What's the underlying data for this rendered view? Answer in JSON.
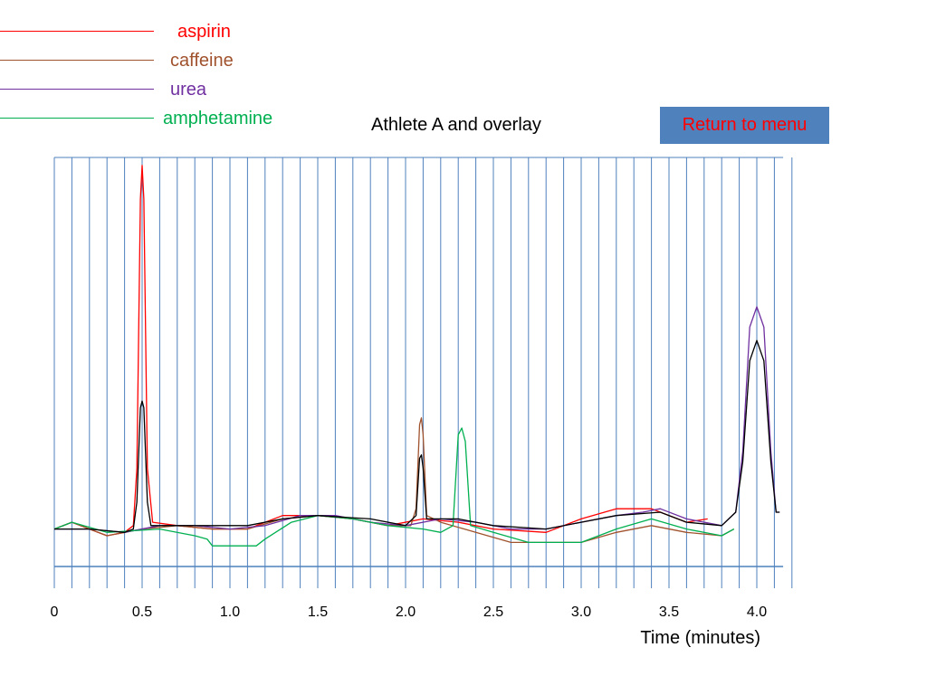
{
  "menu_button": {
    "label": "Return to menu"
  },
  "chart_data": {
    "type": "line",
    "title": "Athlete A and overlay",
    "xlabel": "Time (minutes)",
    "ylabel": "",
    "xlim": [
      0,
      4.15
    ],
    "x_ticks": [
      {
        "value": 0,
        "label": "0"
      },
      {
        "value": 0.5,
        "label": "0.5"
      },
      {
        "value": 1.0,
        "label": "1.0"
      },
      {
        "value": 1.5,
        "label": "1.5"
      },
      {
        "value": 2.0,
        "label": "2.0"
      },
      {
        "value": 2.5,
        "label": "2.5"
      },
      {
        "value": 3.0,
        "label": "3.0"
      },
      {
        "value": 3.5,
        "label": "3.5"
      },
      {
        "value": 4.0,
        "label": "4.0"
      }
    ],
    "grid": "vertical lines every 0.1 min",
    "legend_position": "top-left",
    "series": [
      {
        "name": "aspirin",
        "color": "#ff0000",
        "points": [
          [
            0,
            0.02
          ],
          [
            0.1,
            0.04
          ],
          [
            0.2,
            0.02
          ],
          [
            0.3,
            0.0
          ],
          [
            0.4,
            0.01
          ],
          [
            0.45,
            0.03
          ],
          [
            0.47,
            0.2
          ],
          [
            0.49,
            1.0
          ],
          [
            0.5,
            1.1
          ],
          [
            0.51,
            1.0
          ],
          [
            0.53,
            0.2
          ],
          [
            0.56,
            0.04
          ],
          [
            0.7,
            0.03
          ],
          [
            0.9,
            0.02
          ],
          [
            1.1,
            0.02
          ],
          [
            1.3,
            0.06
          ],
          [
            1.5,
            0.06
          ],
          [
            1.7,
            0.05
          ],
          [
            1.9,
            0.03
          ],
          [
            2.1,
            0.05
          ],
          [
            2.3,
            0.04
          ],
          [
            2.5,
            0.02
          ],
          [
            2.8,
            0.01
          ],
          [
            3.0,
            0.05
          ],
          [
            3.2,
            0.08
          ],
          [
            3.4,
            0.08
          ],
          [
            3.6,
            0.04
          ],
          [
            3.72,
            0.05
          ]
        ]
      },
      {
        "name": "caffeine",
        "color": "#a0522d",
        "points": [
          [
            0,
            0.02
          ],
          [
            0.1,
            0.04
          ],
          [
            0.3,
            0.0
          ],
          [
            0.5,
            0.02
          ],
          [
            0.7,
            0.03
          ],
          [
            0.9,
            0.02
          ],
          [
            1.1,
            0.02
          ],
          [
            1.3,
            0.05
          ],
          [
            1.5,
            0.06
          ],
          [
            1.7,
            0.05
          ],
          [
            1.9,
            0.03
          ],
          [
            2.03,
            0.03
          ],
          [
            2.06,
            0.08
          ],
          [
            2.08,
            0.33
          ],
          [
            2.09,
            0.35
          ],
          [
            2.1,
            0.3
          ],
          [
            2.12,
            0.06
          ],
          [
            2.2,
            0.04
          ],
          [
            2.4,
            0.01
          ],
          [
            2.6,
            -0.02
          ],
          [
            2.8,
            -0.02
          ],
          [
            3.0,
            -0.02
          ],
          [
            3.2,
            0.01
          ],
          [
            3.4,
            0.03
          ],
          [
            3.6,
            0.01
          ],
          [
            3.8,
            0.0
          ],
          [
            3.87,
            0.02
          ]
        ]
      },
      {
        "name": "urea",
        "color": "#7030a0",
        "points": [
          [
            0,
            0.02
          ],
          [
            0.2,
            0.02
          ],
          [
            0.4,
            0.01
          ],
          [
            0.6,
            0.03
          ],
          [
            0.8,
            0.03
          ],
          [
            1.0,
            0.02
          ],
          [
            1.2,
            0.03
          ],
          [
            1.4,
            0.06
          ],
          [
            1.6,
            0.06
          ],
          [
            1.8,
            0.04
          ],
          [
            2.0,
            0.03
          ],
          [
            2.2,
            0.05
          ],
          [
            2.4,
            0.04
          ],
          [
            2.6,
            0.02
          ],
          [
            2.8,
            0.02
          ],
          [
            3.0,
            0.04
          ],
          [
            3.2,
            0.06
          ],
          [
            3.35,
            0.07
          ],
          [
            3.45,
            0.08
          ],
          [
            3.6,
            0.05
          ],
          [
            3.8,
            0.03
          ],
          [
            3.88,
            0.07
          ],
          [
            3.92,
            0.25
          ],
          [
            3.96,
            0.62
          ],
          [
            4.0,
            0.68
          ],
          [
            4.04,
            0.62
          ],
          [
            4.08,
            0.25
          ],
          [
            4.11,
            0.07
          ],
          [
            4.13,
            0.07
          ]
        ]
      },
      {
        "name": "amphetamine",
        "color": "#00b050",
        "points": [
          [
            0,
            0.02
          ],
          [
            0.1,
            0.04
          ],
          [
            0.3,
            0.01
          ],
          [
            0.6,
            0.02
          ],
          [
            0.8,
            0.0
          ],
          [
            0.87,
            -0.01
          ],
          [
            0.9,
            -0.03
          ],
          [
            1.0,
            -0.03
          ],
          [
            1.15,
            -0.03
          ],
          [
            1.2,
            -0.01
          ],
          [
            1.35,
            0.04
          ],
          [
            1.5,
            0.06
          ],
          [
            1.7,
            0.05
          ],
          [
            1.9,
            0.03
          ],
          [
            2.1,
            0.02
          ],
          [
            2.2,
            0.01
          ],
          [
            2.27,
            0.03
          ],
          [
            2.3,
            0.3
          ],
          [
            2.32,
            0.32
          ],
          [
            2.34,
            0.28
          ],
          [
            2.37,
            0.03
          ],
          [
            2.5,
            0.01
          ],
          [
            2.7,
            -0.02
          ],
          [
            3.0,
            -0.02
          ],
          [
            3.2,
            0.02
          ],
          [
            3.4,
            0.05
          ],
          [
            3.6,
            0.02
          ],
          [
            3.8,
            0.0
          ],
          [
            3.87,
            0.02
          ]
        ]
      },
      {
        "name": "",
        "color": "#000000",
        "points": [
          [
            0,
            0.02
          ],
          [
            0.2,
            0.02
          ],
          [
            0.4,
            0.01
          ],
          [
            0.45,
            0.02
          ],
          [
            0.47,
            0.1
          ],
          [
            0.49,
            0.38
          ],
          [
            0.5,
            0.4
          ],
          [
            0.51,
            0.38
          ],
          [
            0.53,
            0.1
          ],
          [
            0.55,
            0.03
          ],
          [
            0.8,
            0.03
          ],
          [
            1.1,
            0.03
          ],
          [
            1.3,
            0.05
          ],
          [
            1.5,
            0.06
          ],
          [
            1.8,
            0.05
          ],
          [
            2.0,
            0.03
          ],
          [
            2.06,
            0.06
          ],
          [
            2.08,
            0.23
          ],
          [
            2.09,
            0.24
          ],
          [
            2.1,
            0.2
          ],
          [
            2.12,
            0.05
          ],
          [
            2.3,
            0.05
          ],
          [
            2.5,
            0.03
          ],
          [
            2.8,
            0.02
          ],
          [
            3.0,
            0.04
          ],
          [
            3.2,
            0.06
          ],
          [
            3.45,
            0.07
          ],
          [
            3.6,
            0.04
          ],
          [
            3.8,
            0.03
          ],
          [
            3.88,
            0.07
          ],
          [
            3.92,
            0.22
          ],
          [
            3.96,
            0.52
          ],
          [
            4.0,
            0.58
          ],
          [
            4.04,
            0.52
          ],
          [
            4.08,
            0.22
          ],
          [
            4.11,
            0.07
          ],
          [
            4.13,
            0.07
          ]
        ]
      }
    ]
  }
}
